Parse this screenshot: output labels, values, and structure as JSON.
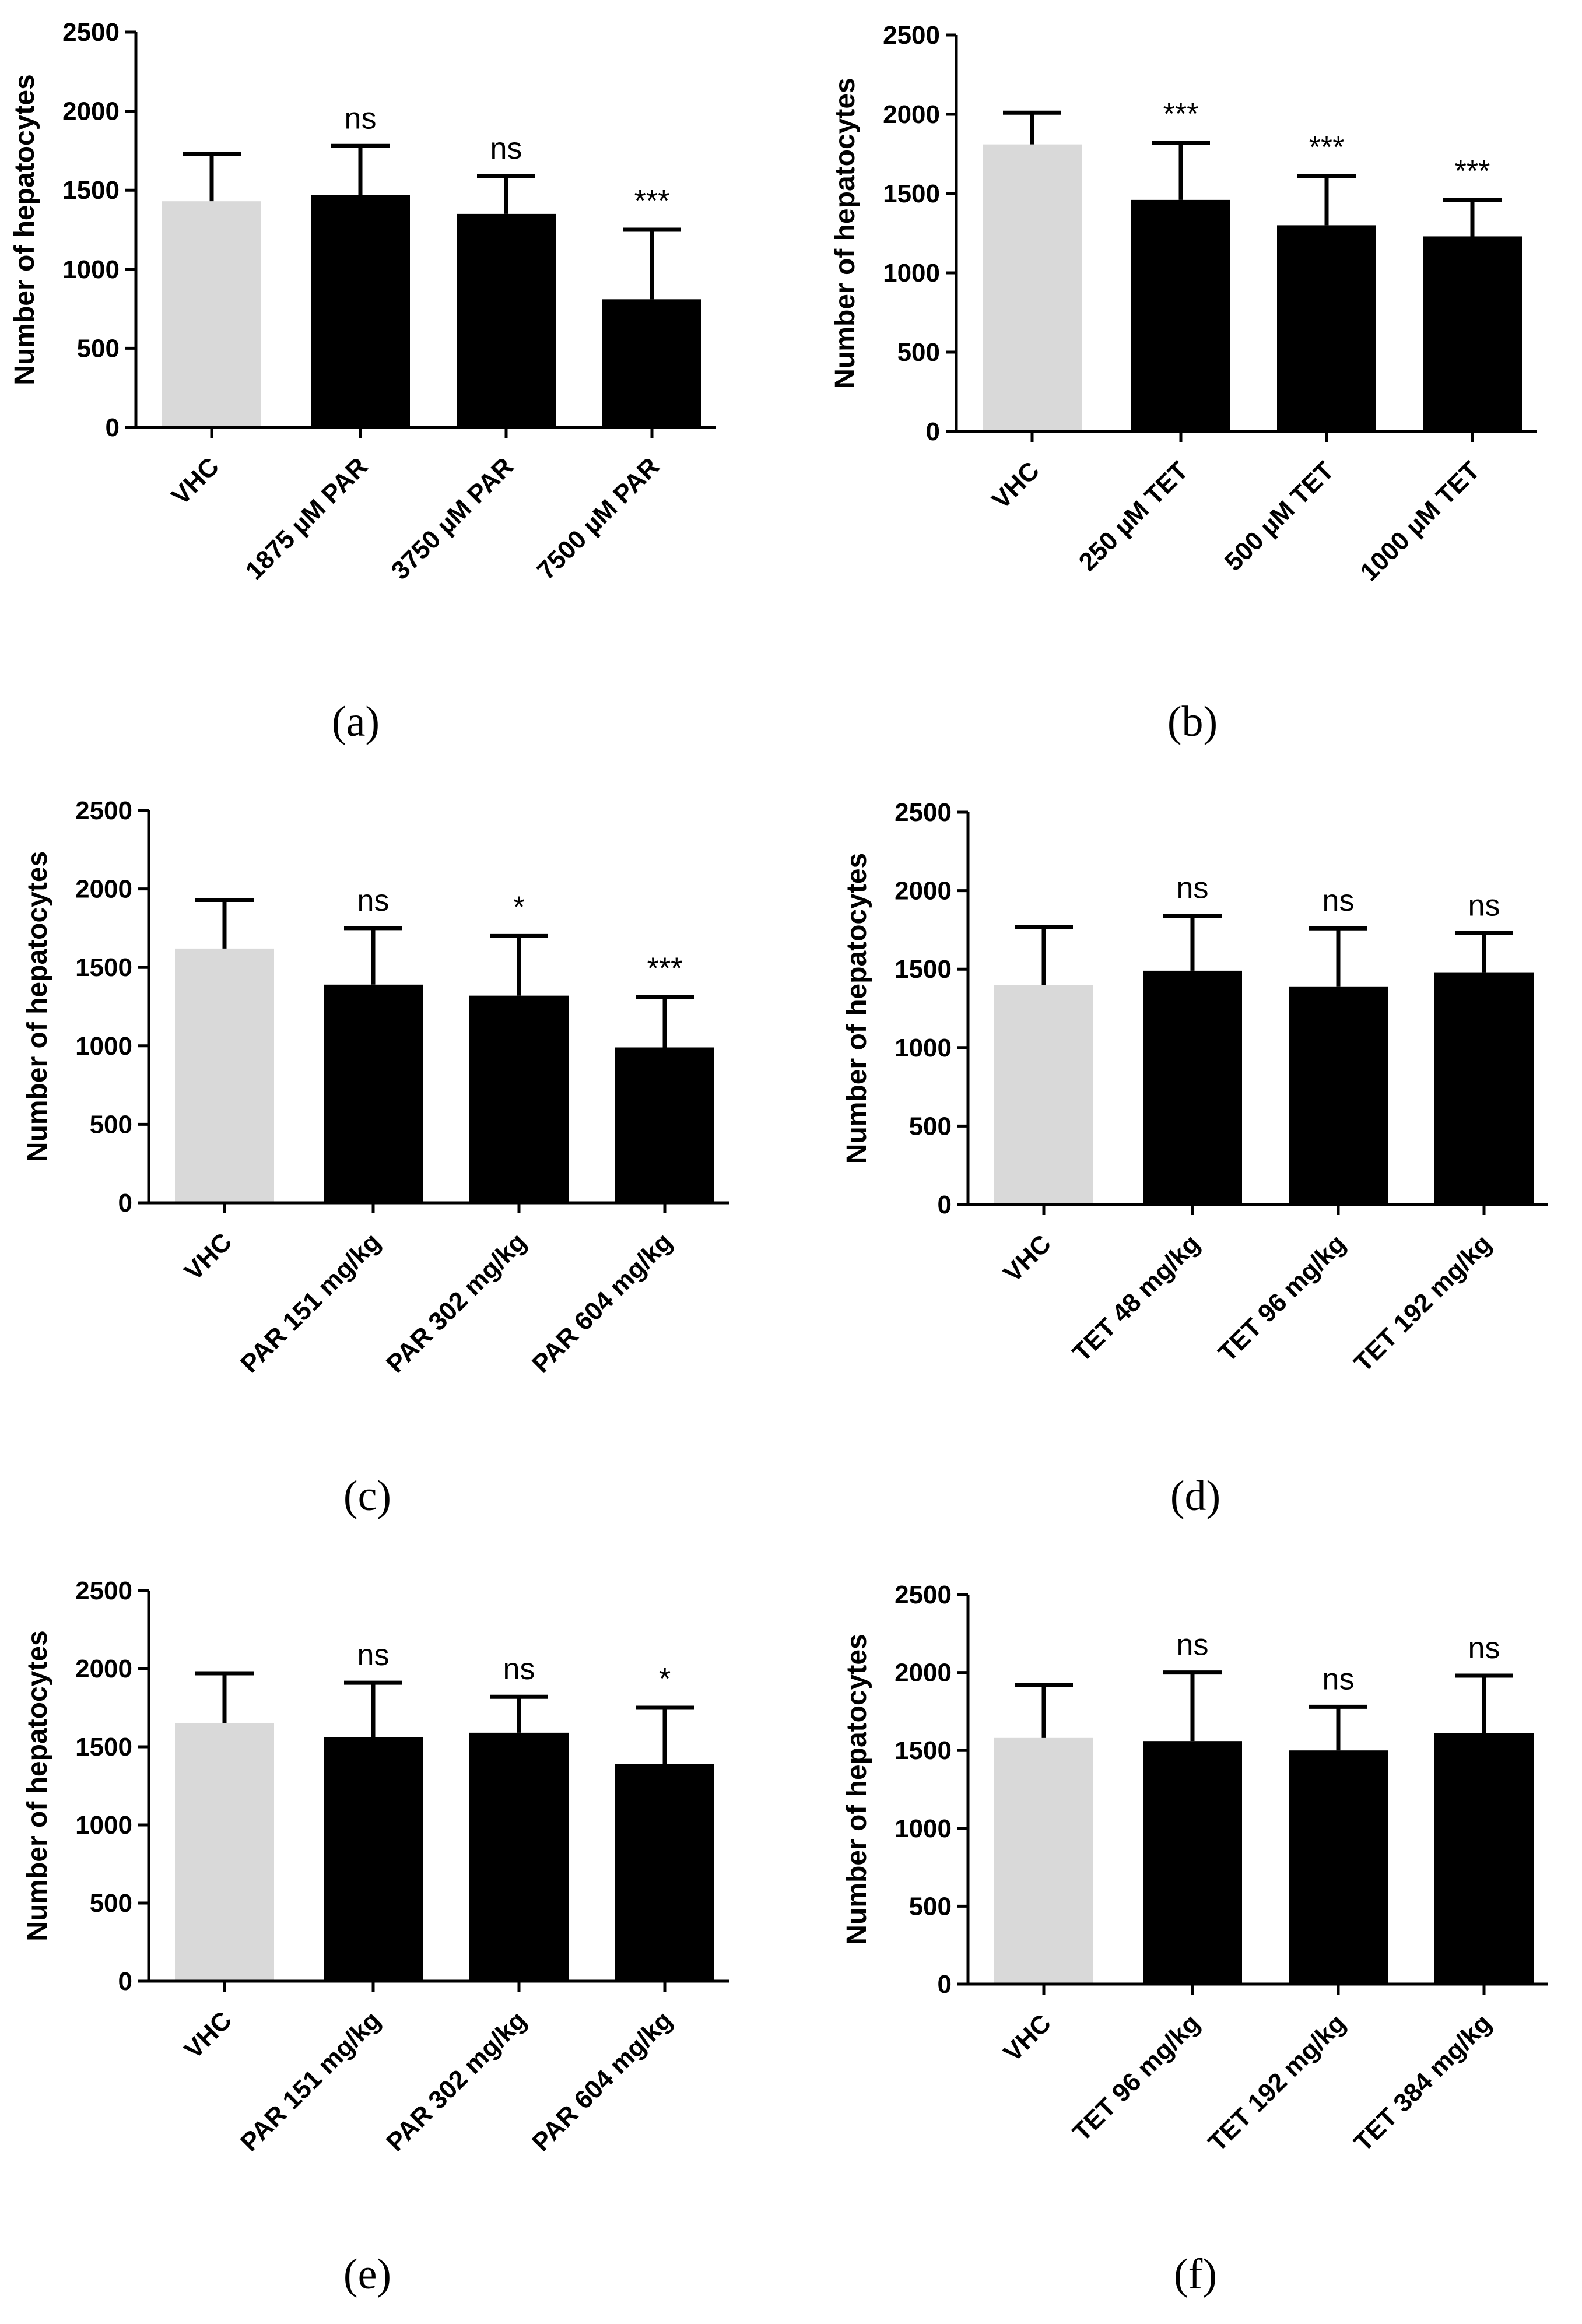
{
  "colors": {
    "control_bar": "#d9d9d9",
    "treatment_bar": "#000000",
    "axis": "#000000"
  },
  "chart_data": [
    {
      "panel": "(a)",
      "panel_letter": "a",
      "type": "bar",
      "ylabel": "Number of hepatocytes",
      "ylim": [
        0,
        2500
      ],
      "yticks": [
        "0",
        "500",
        "1000",
        "1500",
        "2000",
        "2500"
      ],
      "categories": [
        "VHC",
        "1875 µM PAR",
        "3750 µM PAR",
        "7500 µM PAR"
      ],
      "values": [
        1430,
        1470,
        1350,
        810
      ],
      "errors": [
        300,
        310,
        240,
        440
      ],
      "significance": [
        "",
        "ns",
        "ns",
        "***"
      ],
      "series": [
        {
          "name": "Number of hepatocytes",
          "values": [
            1430,
            1470,
            1350,
            810
          ]
        }
      ]
    },
    {
      "panel": "(b)",
      "panel_letter": "b",
      "type": "bar",
      "ylabel": "Number of hepatocytes",
      "ylim": [
        0,
        2500
      ],
      "yticks": [
        "0",
        "500",
        "1000",
        "1500",
        "2000",
        "2500"
      ],
      "categories": [
        "VHC",
        "250 µM TET",
        "500 µM TET",
        "1000 µM TET"
      ],
      "values": [
        1810,
        1460,
        1300,
        1230
      ],
      "errors": [
        200,
        360,
        310,
        230
      ],
      "significance": [
        "",
        "***",
        "***",
        "***"
      ],
      "series": [
        {
          "name": "Number of hepatocytes",
          "values": [
            1810,
            1460,
            1300,
            1230
          ]
        }
      ]
    },
    {
      "panel": "(c)",
      "panel_letter": "c",
      "type": "bar",
      "ylabel": "Number of hepatocytes",
      "ylim": [
        0,
        2500
      ],
      "yticks": [
        "0",
        "500",
        "1000",
        "1500",
        "2000",
        "2500"
      ],
      "categories": [
        "VHC",
        "PAR 151 mg/kg",
        "PAR 302 mg/kg",
        "PAR 604 mg/kg"
      ],
      "values": [
        1620,
        1390,
        1320,
        990
      ],
      "errors": [
        310,
        360,
        380,
        320
      ],
      "significance": [
        "",
        "ns",
        "*",
        "***"
      ],
      "series": [
        {
          "name": "Number of hepatocytes",
          "values": [
            1620,
            1390,
            1320,
            990
          ]
        }
      ]
    },
    {
      "panel": "(d)",
      "panel_letter": "d",
      "type": "bar",
      "ylabel": "Number of hepatocytes",
      "ylim": [
        0,
        2500
      ],
      "yticks": [
        "0",
        "500",
        "1000",
        "1500",
        "2000",
        "2500"
      ],
      "categories": [
        "VHC",
        "TET 48 mg/kg",
        "TET 96 mg/kg",
        "TET 192 mg/kg"
      ],
      "values": [
        1400,
        1490,
        1390,
        1480
      ],
      "errors": [
        370,
        350,
        370,
        250
      ],
      "significance": [
        "",
        "ns",
        "ns",
        "ns"
      ],
      "series": [
        {
          "name": "Number of hepatocytes",
          "values": [
            1400,
            1490,
            1390,
            1480
          ]
        }
      ]
    },
    {
      "panel": "(e)",
      "panel_letter": "e",
      "type": "bar",
      "ylabel": "Number of hepatocytes",
      "ylim": [
        0,
        2500
      ],
      "yticks": [
        "0",
        "500",
        "1000",
        "1500",
        "2000",
        "2500"
      ],
      "categories": [
        "VHC",
        "PAR 151 mg/kg",
        "PAR 302 mg/kg",
        "PAR 604 mg/kg"
      ],
      "values": [
        1650,
        1560,
        1590,
        1390
      ],
      "errors": [
        320,
        350,
        230,
        360
      ],
      "significance": [
        "",
        "ns",
        "ns",
        "*"
      ],
      "series": [
        {
          "name": "Number of hepatocytes",
          "values": [
            1650,
            1560,
            1590,
            1390
          ]
        }
      ]
    },
    {
      "panel": "(f)",
      "panel_letter": "f",
      "type": "bar",
      "ylabel": "Number of hepatocytes",
      "ylim": [
        0,
        2500
      ],
      "yticks": [
        "0",
        "500",
        "1000",
        "1500",
        "2000",
        "2500"
      ],
      "categories": [
        "VHC",
        "TET 96 mg/kg",
        "TET 192 mg/kg",
        "TET 384 mg/kg"
      ],
      "values": [
        1580,
        1560,
        1500,
        1610
      ],
      "errors": [
        340,
        440,
        280,
        370
      ],
      "significance": [
        "",
        "ns",
        "ns",
        "ns"
      ],
      "series": [
        {
          "name": "Number of hepatocytes",
          "values": [
            1580,
            1560,
            1500,
            1610
          ]
        }
      ]
    }
  ]
}
